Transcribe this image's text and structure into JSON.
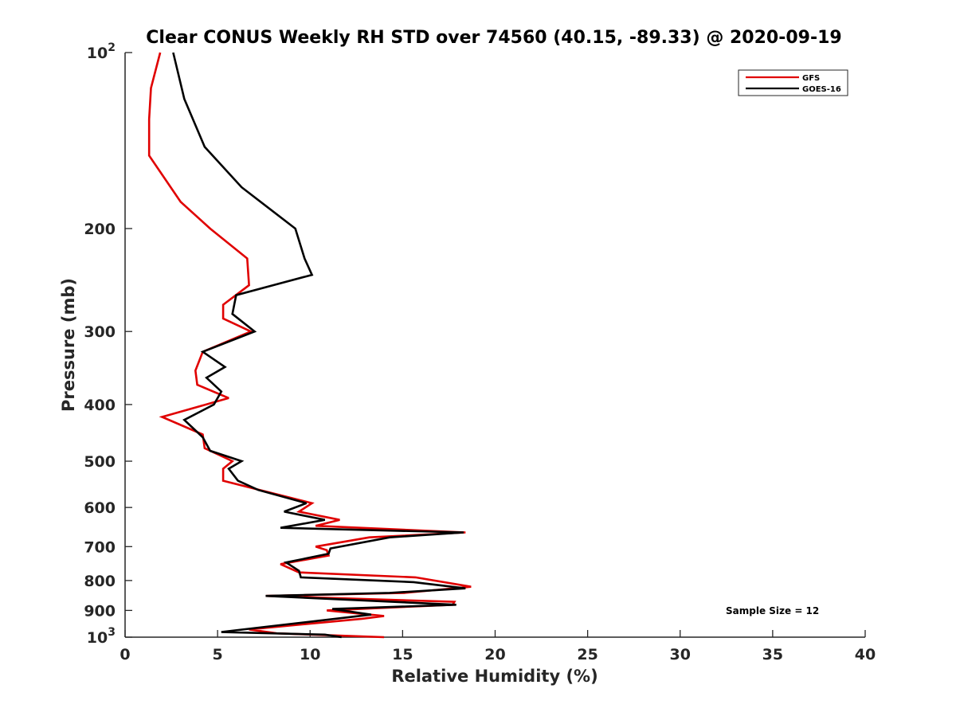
{
  "chart_data": {
    "type": "line",
    "title": "Clear CONUS Weekly RH STD over 74560 (40.15, -89.33) @ 2020-09-19",
    "xlabel": "Relative Humidity (%)",
    "ylabel": "Pressure (mb)",
    "xlim": [
      0,
      40
    ],
    "ylim": [
      100,
      1000
    ],
    "y_scale": "log",
    "y_reversed": true,
    "x_ticks": [
      "0",
      "5",
      "10",
      "15",
      "20",
      "25",
      "30",
      "35",
      "40"
    ],
    "y_ticks": [
      {
        "value": 100,
        "base": "10",
        "exp": "2"
      },
      {
        "value": 200,
        "label": "200"
      },
      {
        "value": 300,
        "label": "300"
      },
      {
        "value": 400,
        "label": "400"
      },
      {
        "value": 500,
        "label": "500"
      },
      {
        "value": 600,
        "label": "600"
      },
      {
        "value": 700,
        "label": "700"
      },
      {
        "value": 800,
        "label": "800"
      },
      {
        "value": 900,
        "label": "900"
      },
      {
        "value": 1000,
        "base": "10",
        "exp": "3"
      }
    ],
    "legend_position": "top-right",
    "annotation": "Sample Size = 12",
    "series": [
      {
        "name": "GFS",
        "color": "#e00000",
        "points": [
          [
            1.9,
            100
          ],
          [
            1.4,
            115
          ],
          [
            1.3,
            130
          ],
          [
            1.3,
            150
          ],
          [
            3.0,
            180
          ],
          [
            4.6,
            200
          ],
          [
            6.6,
            225
          ],
          [
            6.7,
            250
          ],
          [
            5.3,
            270
          ],
          [
            5.3,
            285
          ],
          [
            6.8,
            300
          ],
          [
            4.2,
            325
          ],
          [
            3.8,
            350
          ],
          [
            3.9,
            370
          ],
          [
            5.6,
            390
          ],
          [
            2.0,
            420
          ],
          [
            4.2,
            450
          ],
          [
            4.3,
            475
          ],
          [
            5.8,
            500
          ],
          [
            5.3,
            515
          ],
          [
            5.3,
            540
          ],
          [
            10.1,
            590
          ],
          [
            9.4,
            610
          ],
          [
            11.6,
            630
          ],
          [
            10.3,
            645
          ],
          [
            18.4,
            662
          ],
          [
            13.2,
            675
          ],
          [
            10.3,
            700
          ],
          [
            10.9,
            710
          ],
          [
            11.0,
            725
          ],
          [
            8.4,
            750
          ],
          [
            9.4,
            775
          ],
          [
            15.7,
            790
          ],
          [
            18.7,
            820
          ],
          [
            15.1,
            840
          ],
          [
            7.6,
            850
          ],
          [
            17.8,
            870
          ],
          [
            17.7,
            880
          ],
          [
            10.9,
            900
          ],
          [
            14.0,
            920
          ],
          [
            12.8,
            930
          ],
          [
            6.7,
            970
          ],
          [
            8.2,
            985
          ],
          [
            14.0,
            1000
          ]
        ]
      },
      {
        "name": "GOES-16",
        "color": "#000000",
        "points": [
          [
            2.6,
            100
          ],
          [
            3.2,
            120
          ],
          [
            4.3,
            145
          ],
          [
            6.3,
            170
          ],
          [
            9.2,
            200
          ],
          [
            9.7,
            225
          ],
          [
            10.1,
            240
          ],
          [
            8.0,
            250
          ],
          [
            6.0,
            260
          ],
          [
            5.8,
            280
          ],
          [
            7.0,
            300
          ],
          [
            4.2,
            325
          ],
          [
            5.4,
            345
          ],
          [
            4.4,
            360
          ],
          [
            5.2,
            380
          ],
          [
            4.8,
            400
          ],
          [
            3.2,
            425
          ],
          [
            4.2,
            455
          ],
          [
            4.6,
            480
          ],
          [
            6.3,
            500
          ],
          [
            5.6,
            515
          ],
          [
            6.1,
            540
          ],
          [
            7.2,
            560
          ],
          [
            9.8,
            590
          ],
          [
            8.6,
            610
          ],
          [
            10.8,
            630
          ],
          [
            8.4,
            650
          ],
          [
            18.3,
            662
          ],
          [
            14.3,
            675
          ],
          [
            11.1,
            705
          ],
          [
            11.0,
            720
          ],
          [
            8.7,
            745
          ],
          [
            9.4,
            770
          ],
          [
            9.5,
            790
          ],
          [
            15.6,
            805
          ],
          [
            18.4,
            825
          ],
          [
            14.3,
            840
          ],
          [
            7.6,
            850
          ],
          [
            17.9,
            880
          ],
          [
            11.2,
            895
          ],
          [
            13.3,
            915
          ],
          [
            7.6,
            960
          ],
          [
            5.2,
            980
          ],
          [
            10.8,
            990
          ],
          [
            11.7,
            1000
          ]
        ]
      }
    ]
  }
}
